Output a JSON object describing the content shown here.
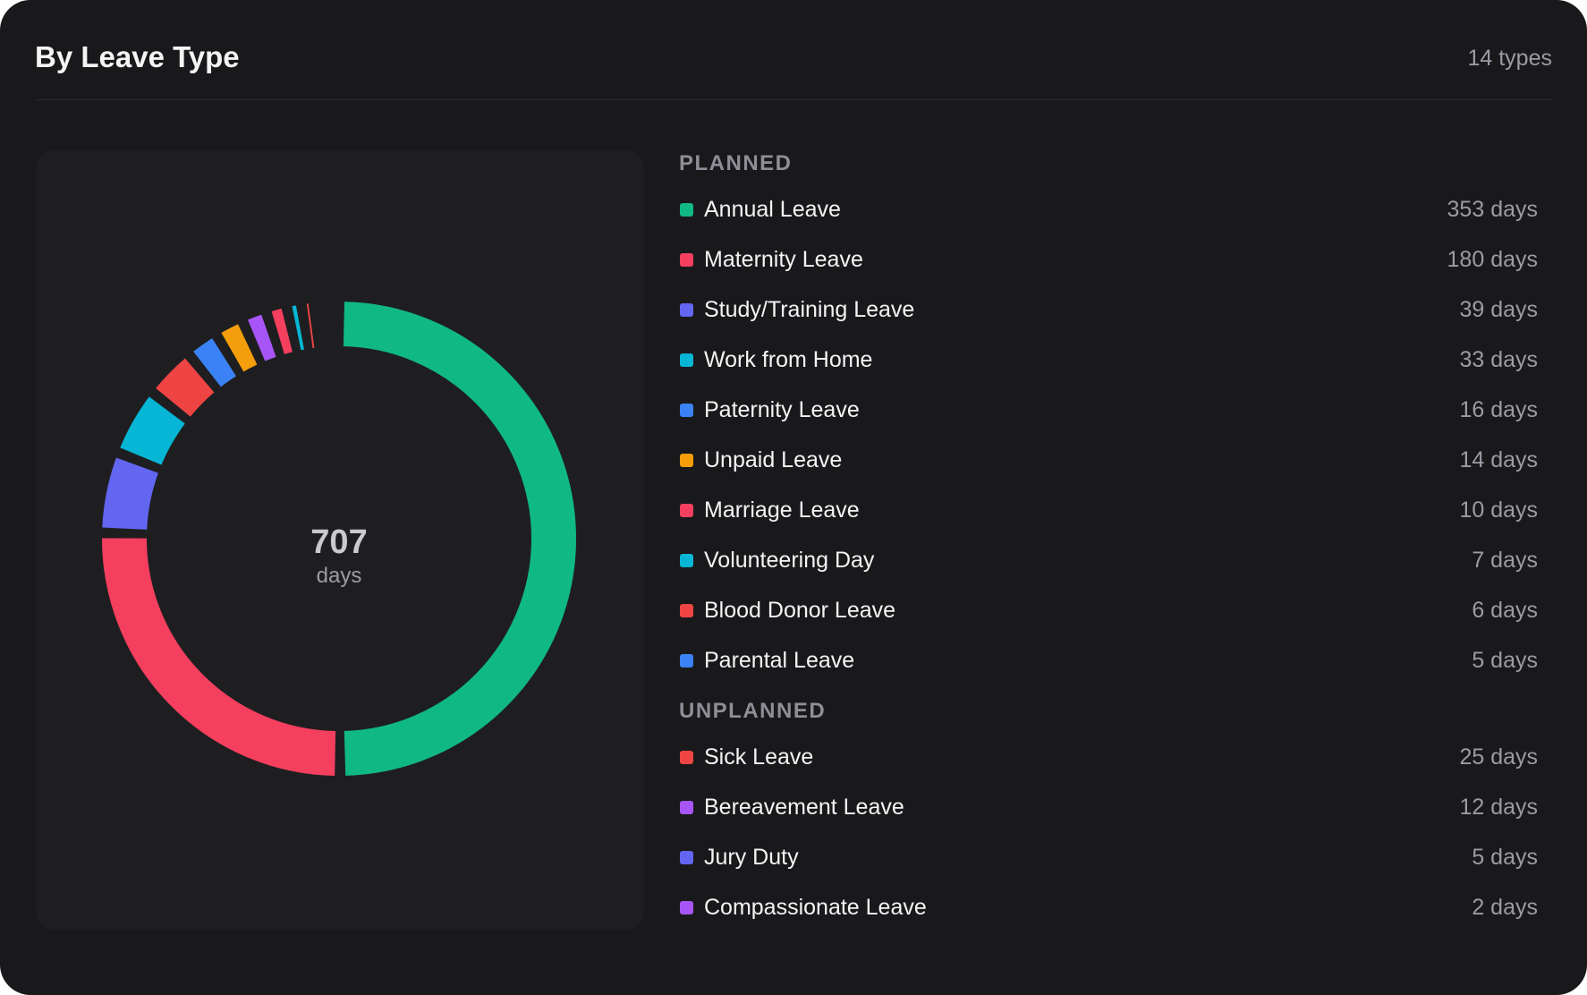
{
  "header": {
    "title": "By Leave Type",
    "type_count": "14 types"
  },
  "chart_data": {
    "type": "donut",
    "center_value": "707",
    "center_label": "days",
    "total": 707,
    "unit": "days",
    "slices": [
      {
        "name": "Annual Leave",
        "value": 353,
        "color": "#10b981"
      },
      {
        "name": "Maternity Leave",
        "value": 180,
        "color": "#f43f5e"
      },
      {
        "name": "Study/Training Leave",
        "value": 39,
        "color": "#6366f1"
      },
      {
        "name": "Work from Home",
        "value": 33,
        "color": "#06b6d4"
      },
      {
        "name": "Sick Leave",
        "value": 25,
        "color": "#ef4444"
      },
      {
        "name": "Paternity Leave",
        "value": 16,
        "color": "#3b82f6"
      },
      {
        "name": "Unpaid Leave",
        "value": 14,
        "color": "#f59e0b"
      },
      {
        "name": "Bereavement Leave",
        "value": 12,
        "color": "#a855f7"
      },
      {
        "name": "Marriage Leave",
        "value": 10,
        "color": "#f43f5e"
      },
      {
        "name": "Volunteering Day",
        "value": 7,
        "color": "#06b6d4"
      },
      {
        "name": "Blood Donor Leave",
        "value": 6,
        "color": "#ef4444"
      },
      {
        "name": "Parental Leave",
        "value": 5,
        "color": "#3b82f6"
      },
      {
        "name": "Jury Duty",
        "value": 5,
        "color": "#6366f1"
      },
      {
        "name": "Compassionate Leave",
        "value": 2,
        "color": "#a855f7"
      }
    ]
  },
  "legend": {
    "groups": [
      {
        "label": "PLANNED",
        "items": [
          {
            "name": "Annual Leave",
            "value": "353 days",
            "color": "#10b981"
          },
          {
            "name": "Maternity Leave",
            "value": "180 days",
            "color": "#f43f5e"
          },
          {
            "name": "Study/Training Leave",
            "value": "39 days",
            "color": "#6366f1"
          },
          {
            "name": "Work from Home",
            "value": "33 days",
            "color": "#06b6d4"
          },
          {
            "name": "Paternity Leave",
            "value": "16 days",
            "color": "#3b82f6"
          },
          {
            "name": "Unpaid Leave",
            "value": "14 days",
            "color": "#f59e0b"
          },
          {
            "name": "Marriage Leave",
            "value": "10 days",
            "color": "#f43f5e"
          },
          {
            "name": "Volunteering Day",
            "value": "7 days",
            "color": "#06b6d4"
          },
          {
            "name": "Blood Donor Leave",
            "value": "6 days",
            "color": "#ef4444"
          },
          {
            "name": "Parental Leave",
            "value": "5 days",
            "color": "#3b82f6"
          }
        ]
      },
      {
        "label": "UNPLANNED",
        "items": [
          {
            "name": "Sick Leave",
            "value": "25 days",
            "color": "#ef4444"
          },
          {
            "name": "Bereavement Leave",
            "value": "12 days",
            "color": "#a855f7"
          },
          {
            "name": "Jury Duty",
            "value": "5 days",
            "color": "#6366f1"
          },
          {
            "name": "Compassionate Leave",
            "value": "2 days",
            "color": "#a855f7"
          }
        ]
      }
    ]
  }
}
